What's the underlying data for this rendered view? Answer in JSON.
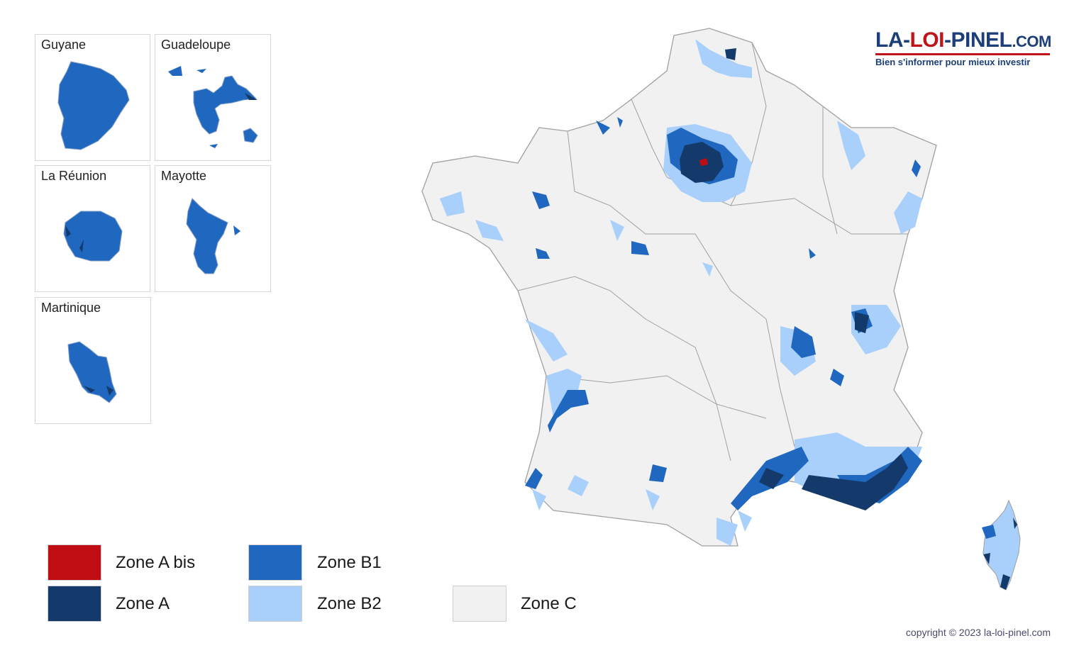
{
  "insets": {
    "guyane": "Guyane",
    "guadeloupe": "Guadeloupe",
    "reunion": "La Réunion",
    "mayotte": "Mayotte",
    "martinique": "Martinique"
  },
  "legend": {
    "zone_a_bis": {
      "label": "Zone A bis",
      "color": "#c00d13"
    },
    "zone_a": {
      "label": "Zone A",
      "color": "#143a6b"
    },
    "zone_b1": {
      "label": "Zone B1",
      "color": "#2068bf"
    },
    "zone_b2": {
      "label": "Zone B2",
      "color": "#a8d0fa"
    },
    "zone_c": {
      "label": "Zone C",
      "color": "#f1f1f1"
    }
  },
  "brand": {
    "part1": "LA-",
    "part2": "LOI",
    "part3": "-PINEL",
    "part4": ".COM",
    "tagline": "Bien s'informer pour mieux investir"
  },
  "copyright": "copyright © 2023 la-loi-pinel.com"
}
